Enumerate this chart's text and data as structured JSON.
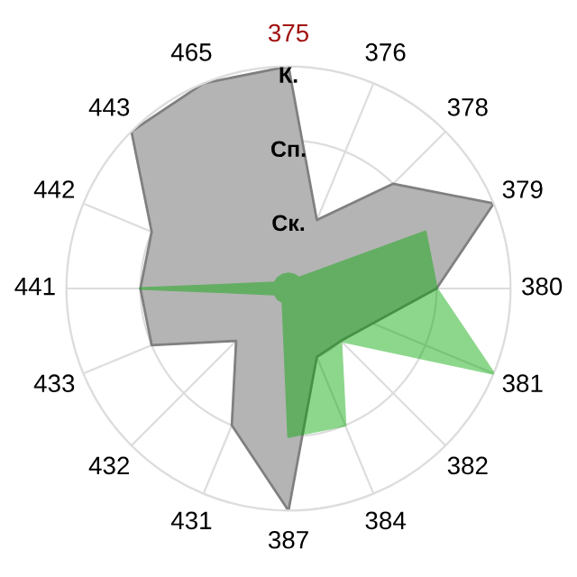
{
  "chart_data": {
    "type": "radar",
    "categories": [
      "375",
      "376",
      "378",
      "379",
      "380",
      "381",
      "382",
      "384",
      "387",
      "431",
      "432",
      "433",
      "441",
      "442",
      "443",
      "465"
    ],
    "series": [
      {
        "color": "#b4b4b4",
        "values": [
          3,
          1,
          2,
          3,
          2,
          null,
          1,
          1,
          3,
          2,
          1,
          2,
          2,
          2,
          3,
          3
        ]
      },
      {
        "color": "#03a603",
        "values": [
          0.2,
          0.2,
          0.2,
          2,
          2,
          3,
          1,
          2,
          2,
          0.2,
          0.2,
          0.2,
          2,
          0.2,
          0.2,
          0.2
        ]
      }
    ],
    "ylim": [
      0,
      3
    ],
    "yticks": [
      {
        "value": 1,
        "label": "Ск."
      },
      {
        "value": 2,
        "label": "Сп."
      },
      {
        "value": 3,
        "label": "К."
      }
    ],
    "grid": true,
    "legend": false
  }
}
